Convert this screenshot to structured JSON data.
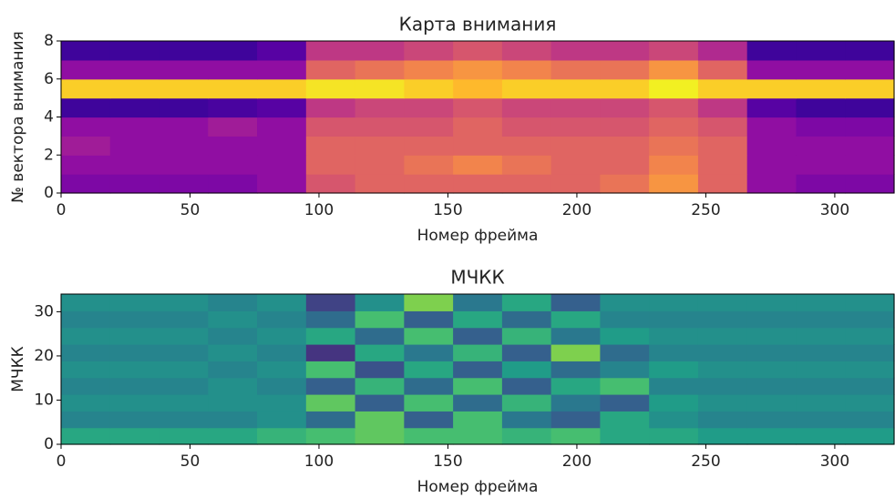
{
  "chart_data": [
    {
      "type": "heatmap",
      "title": "Карта внимания",
      "x_label": "Номер фрейма",
      "y_label": "№ вектора внимания",
      "colormap": "plasma",
      "clim": [
        0,
        1
      ],
      "xlim": [
        0,
        323
      ],
      "xticks": [
        0,
        50,
        100,
        150,
        200,
        250,
        300
      ],
      "ylim": [
        0,
        8
      ],
      "yticks": [
        0,
        2,
        4,
        6,
        8
      ],
      "values": [
        [
          0.25,
          0.25,
          0.25,
          0.25,
          0.3,
          0.55,
          0.6,
          0.6,
          0.6,
          0.6,
          0.6,
          0.65,
          0.75,
          0.6,
          0.3,
          0.25,
          0.25
        ],
        [
          0.3,
          0.3,
          0.3,
          0.3,
          0.3,
          0.6,
          0.6,
          0.65,
          0.7,
          0.65,
          0.6,
          0.6,
          0.7,
          0.6,
          0.3,
          0.3,
          0.3
        ],
        [
          0.35,
          0.3,
          0.3,
          0.3,
          0.3,
          0.6,
          0.6,
          0.6,
          0.6,
          0.6,
          0.6,
          0.6,
          0.65,
          0.6,
          0.3,
          0.3,
          0.3
        ],
        [
          0.3,
          0.3,
          0.3,
          0.35,
          0.3,
          0.55,
          0.55,
          0.55,
          0.6,
          0.55,
          0.55,
          0.55,
          0.6,
          0.55,
          0.3,
          0.25,
          0.25
        ],
        [
          0.1,
          0.1,
          0.1,
          0.12,
          0.15,
          0.45,
          0.5,
          0.5,
          0.55,
          0.5,
          0.5,
          0.5,
          0.55,
          0.45,
          0.15,
          0.1,
          0.1
        ],
        [
          0.9,
          0.9,
          0.9,
          0.9,
          0.9,
          0.95,
          0.95,
          0.9,
          0.85,
          0.9,
          0.9,
          0.9,
          0.98,
          0.9,
          0.9,
          0.9,
          0.9
        ],
        [
          0.3,
          0.3,
          0.3,
          0.3,
          0.3,
          0.6,
          0.65,
          0.7,
          0.75,
          0.7,
          0.65,
          0.65,
          0.75,
          0.6,
          0.3,
          0.3,
          0.3
        ],
        [
          0.1,
          0.1,
          0.1,
          0.1,
          0.15,
          0.45,
          0.45,
          0.5,
          0.55,
          0.5,
          0.45,
          0.45,
          0.5,
          0.4,
          0.1,
          0.1,
          0.1
        ]
      ]
    },
    {
      "type": "heatmap",
      "title": "МЧКК",
      "x_label": "Номер фрейма",
      "y_label": "МЧКК",
      "colormap": "viridis",
      "clim": [
        0,
        1
      ],
      "xlim": [
        0,
        323
      ],
      "xticks": [
        0,
        50,
        100,
        150,
        200,
        250,
        300
      ],
      "ylim": [
        0,
        34
      ],
      "yticks": [
        0,
        10,
        20,
        30
      ],
      "values": [
        [
          0.6,
          0.6,
          0.6,
          0.6,
          0.65,
          0.7,
          0.75,
          0.7,
          0.7,
          0.65,
          0.7,
          0.6,
          0.6,
          0.55,
          0.55,
          0.55,
          0.55
        ],
        [
          0.45,
          0.45,
          0.45,
          0.45,
          0.5,
          0.35,
          0.75,
          0.3,
          0.7,
          0.4,
          0.3,
          0.6,
          0.5,
          0.45,
          0.45,
          0.45,
          0.45
        ],
        [
          0.5,
          0.5,
          0.5,
          0.5,
          0.5,
          0.75,
          0.3,
          0.7,
          0.35,
          0.65,
          0.4,
          0.3,
          0.55,
          0.5,
          0.5,
          0.5,
          0.5
        ],
        [
          0.45,
          0.45,
          0.45,
          0.5,
          0.45,
          0.3,
          0.65,
          0.35,
          0.7,
          0.3,
          0.6,
          0.7,
          0.45,
          0.45,
          0.45,
          0.45,
          0.45
        ],
        [
          0.5,
          0.5,
          0.5,
          0.45,
          0.5,
          0.7,
          0.25,
          0.6,
          0.3,
          0.55,
          0.35,
          0.45,
          0.55,
          0.5,
          0.5,
          0.5,
          0.5
        ],
        [
          0.45,
          0.45,
          0.45,
          0.5,
          0.45,
          0.15,
          0.6,
          0.4,
          0.65,
          0.3,
          0.8,
          0.35,
          0.45,
          0.45,
          0.45,
          0.45,
          0.45
        ],
        [
          0.5,
          0.5,
          0.5,
          0.45,
          0.5,
          0.6,
          0.35,
          0.7,
          0.3,
          0.65,
          0.4,
          0.55,
          0.5,
          0.5,
          0.5,
          0.5,
          0.5
        ],
        [
          0.45,
          0.45,
          0.45,
          0.5,
          0.45,
          0.35,
          0.7,
          0.3,
          0.6,
          0.35,
          0.6,
          0.45,
          0.45,
          0.45,
          0.45,
          0.45,
          0.45
        ],
        [
          0.5,
          0.5,
          0.5,
          0.45,
          0.5,
          0.2,
          0.5,
          0.8,
          0.4,
          0.6,
          0.3,
          0.5,
          0.5,
          0.5,
          0.5,
          0.5,
          0.5
        ]
      ]
    }
  ]
}
